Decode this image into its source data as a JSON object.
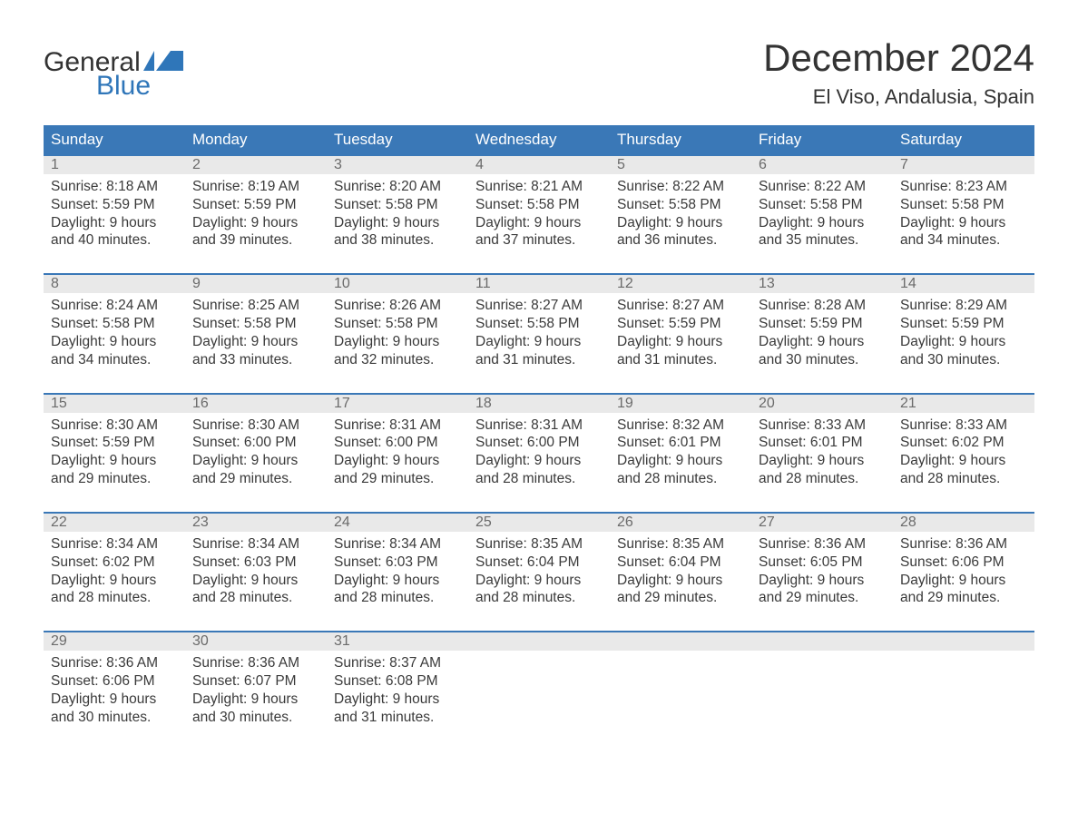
{
  "logo": {
    "top": "General",
    "bottom": "Blue",
    "flag_color": "#2f76b9",
    "text_color_top": "#333333",
    "text_color_bottom": "#2f76b9"
  },
  "title": "December 2024",
  "location": "El Viso, Andalusia, Spain",
  "colors": {
    "header_bg": "#3a78b7",
    "header_text": "#ffffff",
    "daynum_bg": "#e9e9e9",
    "daynum_text": "#6b6b6b",
    "rule": "#3a78b7",
    "body_text": "#3a3a3a",
    "page_bg": "#ffffff"
  },
  "weekdays": [
    "Sunday",
    "Monday",
    "Tuesday",
    "Wednesday",
    "Thursday",
    "Friday",
    "Saturday"
  ],
  "weeks": [
    [
      {
        "n": "1",
        "sunrise": "8:18 AM",
        "sunset": "5:59 PM",
        "dl1": "9 hours",
        "dl2": "and 40 minutes."
      },
      {
        "n": "2",
        "sunrise": "8:19 AM",
        "sunset": "5:59 PM",
        "dl1": "9 hours",
        "dl2": "and 39 minutes."
      },
      {
        "n": "3",
        "sunrise": "8:20 AM",
        "sunset": "5:58 PM",
        "dl1": "9 hours",
        "dl2": "and 38 minutes."
      },
      {
        "n": "4",
        "sunrise": "8:21 AM",
        "sunset": "5:58 PM",
        "dl1": "9 hours",
        "dl2": "and 37 minutes."
      },
      {
        "n": "5",
        "sunrise": "8:22 AM",
        "sunset": "5:58 PM",
        "dl1": "9 hours",
        "dl2": "and 36 minutes."
      },
      {
        "n": "6",
        "sunrise": "8:22 AM",
        "sunset": "5:58 PM",
        "dl1": "9 hours",
        "dl2": "and 35 minutes."
      },
      {
        "n": "7",
        "sunrise": "8:23 AM",
        "sunset": "5:58 PM",
        "dl1": "9 hours",
        "dl2": "and 34 minutes."
      }
    ],
    [
      {
        "n": "8",
        "sunrise": "8:24 AM",
        "sunset": "5:58 PM",
        "dl1": "9 hours",
        "dl2": "and 34 minutes."
      },
      {
        "n": "9",
        "sunrise": "8:25 AM",
        "sunset": "5:58 PM",
        "dl1": "9 hours",
        "dl2": "and 33 minutes."
      },
      {
        "n": "10",
        "sunrise": "8:26 AM",
        "sunset": "5:58 PM",
        "dl1": "9 hours",
        "dl2": "and 32 minutes."
      },
      {
        "n": "11",
        "sunrise": "8:27 AM",
        "sunset": "5:58 PM",
        "dl1": "9 hours",
        "dl2": "and 31 minutes."
      },
      {
        "n": "12",
        "sunrise": "8:27 AM",
        "sunset": "5:59 PM",
        "dl1": "9 hours",
        "dl2": "and 31 minutes."
      },
      {
        "n": "13",
        "sunrise": "8:28 AM",
        "sunset": "5:59 PM",
        "dl1": "9 hours",
        "dl2": "and 30 minutes."
      },
      {
        "n": "14",
        "sunrise": "8:29 AM",
        "sunset": "5:59 PM",
        "dl1": "9 hours",
        "dl2": "and 30 minutes."
      }
    ],
    [
      {
        "n": "15",
        "sunrise": "8:30 AM",
        "sunset": "5:59 PM",
        "dl1": "9 hours",
        "dl2": "and 29 minutes."
      },
      {
        "n": "16",
        "sunrise": "8:30 AM",
        "sunset": "6:00 PM",
        "dl1": "9 hours",
        "dl2": "and 29 minutes."
      },
      {
        "n": "17",
        "sunrise": "8:31 AM",
        "sunset": "6:00 PM",
        "dl1": "9 hours",
        "dl2": "and 29 minutes."
      },
      {
        "n": "18",
        "sunrise": "8:31 AM",
        "sunset": "6:00 PM",
        "dl1": "9 hours",
        "dl2": "and 28 minutes."
      },
      {
        "n": "19",
        "sunrise": "8:32 AM",
        "sunset": "6:01 PM",
        "dl1": "9 hours",
        "dl2": "and 28 minutes."
      },
      {
        "n": "20",
        "sunrise": "8:33 AM",
        "sunset": "6:01 PM",
        "dl1": "9 hours",
        "dl2": "and 28 minutes."
      },
      {
        "n": "21",
        "sunrise": "8:33 AM",
        "sunset": "6:02 PM",
        "dl1": "9 hours",
        "dl2": "and 28 minutes."
      }
    ],
    [
      {
        "n": "22",
        "sunrise": "8:34 AM",
        "sunset": "6:02 PM",
        "dl1": "9 hours",
        "dl2": "and 28 minutes."
      },
      {
        "n": "23",
        "sunrise": "8:34 AM",
        "sunset": "6:03 PM",
        "dl1": "9 hours",
        "dl2": "and 28 minutes."
      },
      {
        "n": "24",
        "sunrise": "8:34 AM",
        "sunset": "6:03 PM",
        "dl1": "9 hours",
        "dl2": "and 28 minutes."
      },
      {
        "n": "25",
        "sunrise": "8:35 AM",
        "sunset": "6:04 PM",
        "dl1": "9 hours",
        "dl2": "and 28 minutes."
      },
      {
        "n": "26",
        "sunrise": "8:35 AM",
        "sunset": "6:04 PM",
        "dl1": "9 hours",
        "dl2": "and 29 minutes."
      },
      {
        "n": "27",
        "sunrise": "8:36 AM",
        "sunset": "6:05 PM",
        "dl1": "9 hours",
        "dl2": "and 29 minutes."
      },
      {
        "n": "28",
        "sunrise": "8:36 AM",
        "sunset": "6:06 PM",
        "dl1": "9 hours",
        "dl2": "and 29 minutes."
      }
    ],
    [
      {
        "n": "29",
        "sunrise": "8:36 AM",
        "sunset": "6:06 PM",
        "dl1": "9 hours",
        "dl2": "and 30 minutes."
      },
      {
        "n": "30",
        "sunrise": "8:36 AM",
        "sunset": "6:07 PM",
        "dl1": "9 hours",
        "dl2": "and 30 minutes."
      },
      {
        "n": "31",
        "sunrise": "8:37 AM",
        "sunset": "6:08 PM",
        "dl1": "9 hours",
        "dl2": "and 31 minutes."
      },
      null,
      null,
      null,
      null
    ]
  ],
  "labels": {
    "sunrise": "Sunrise: ",
    "sunset": "Sunset: ",
    "daylight": "Daylight: "
  }
}
